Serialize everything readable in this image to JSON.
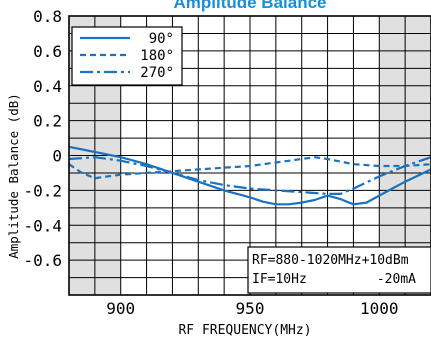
{
  "chart_data": {
    "type": "line",
    "title": "Amplitude Balance",
    "xlabel": "RF FREQUENCY(MHz)",
    "ylabel": "Amplitude Balance (dB)",
    "xlim": [
      880,
      1020
    ],
    "ylim": [
      -0.8,
      0.8
    ],
    "x_ticks": [
      900,
      950,
      1000
    ],
    "y_ticks": [
      {
        "value": 0.8,
        "label": "0.8"
      },
      {
        "value": 0.6,
        "label": "0.6"
      },
      {
        "value": 0.4,
        "label": "0.4"
      },
      {
        "value": 0.2,
        "label": "0.2"
      },
      {
        "value": 0.0,
        "label": "0"
      },
      {
        "value": -0.2,
        "label": "-0.2"
      },
      {
        "value": -0.4,
        "label": "-0.4"
      },
      {
        "value": -0.6,
        "label": "-0.6"
      }
    ],
    "grid": true,
    "shaded_ranges": [
      [
        880,
        900
      ],
      [
        1000,
        1020
      ]
    ],
    "legend_position": "top-left",
    "series": [
      {
        "name": "90°",
        "style": "solid",
        "color": "#1a73c0",
        "x": [
          880,
          890,
          900,
          910,
          920,
          930,
          940,
          950,
          955,
          960,
          965,
          970,
          975,
          980,
          985,
          990,
          995,
          1000,
          1005,
          1010,
          1020
        ],
        "y": [
          0.05,
          0.02,
          -0.01,
          -0.05,
          -0.1,
          -0.15,
          -0.2,
          -0.24,
          -0.265,
          -0.28,
          -0.28,
          -0.27,
          -0.255,
          -0.23,
          -0.25,
          -0.28,
          -0.27,
          -0.23,
          -0.19,
          -0.15,
          -0.08
        ]
      },
      {
        "name": "180°",
        "style": "dashed",
        "color": "#1a73c0",
        "x": [
          880,
          885,
          890,
          895,
          900,
          910,
          920,
          930,
          940,
          950,
          960,
          970,
          975,
          980,
          990,
          1000,
          1010,
          1020
        ],
        "y": [
          -0.05,
          -0.1,
          -0.13,
          -0.12,
          -0.11,
          -0.1,
          -0.09,
          -0.08,
          -0.07,
          -0.06,
          -0.04,
          -0.02,
          -0.01,
          -0.02,
          -0.05,
          -0.06,
          -0.06,
          -0.05
        ]
      },
      {
        "name": "270°",
        "style": "dashdot",
        "color": "#1a73c0",
        "x": [
          880,
          890,
          900,
          910,
          920,
          930,
          940,
          950,
          960,
          970,
          980,
          985,
          990,
          1000,
          1010,
          1020
        ],
        "y": [
          -0.02,
          -0.01,
          -0.03,
          -0.06,
          -0.1,
          -0.14,
          -0.17,
          -0.19,
          -0.2,
          -0.21,
          -0.22,
          -0.22,
          -0.19,
          -0.12,
          -0.06,
          -0.01
        ]
      }
    ],
    "annotation": {
      "line1": "RF=880-1020MHz+10dBm",
      "line2_left": "IF=10Hz",
      "line2_right": "-20mA"
    }
  }
}
